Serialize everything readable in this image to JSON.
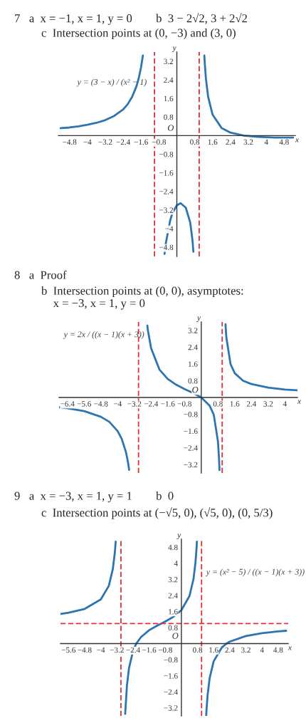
{
  "chart_data": [
    {
      "type": "line",
      "title": "7   a  x = −1, x = 1, y = 0        b  3 − 2√2, 3 + 2√2",
      "subtitle": "c  Intersection points at (0, −3) and (3, 0)",
      "xlabel": "x",
      "ylabel": "y",
      "annotations": [
        "y = (3 − x) / (x² − 1)",
        "O"
      ],
      "series": [
        {
          "color": "#2e75b0",
          "x": [
            -5.2,
            -4.8,
            -4.4,
            -4,
            -3.6,
            -3.2,
            -2.8,
            -2.4,
            -2.2,
            -2,
            -1.8,
            -1.7,
            -1.6,
            -1.52
          ],
          "values": [
            0.32,
            0.35,
            0.4,
            0.47,
            0.55,
            0.67,
            0.85,
            1.13,
            1.35,
            1.67,
            2.14,
            2.49,
            2.95,
            3.45
          ]
        },
        {
          "color": "#2e75b0",
          "x": [
            -0.55,
            -0.5,
            -0.3,
            -0.2,
            0,
            0.17,
            0.4,
            0.6,
            0.7,
            0.74
          ],
          "values": [
            -5.09,
            -4.67,
            -3.66,
            -3.33,
            -3,
            -2.91,
            -3.1,
            -3.75,
            -4.51,
            -5.0
          ]
        },
        {
          "color": "#2e75b0",
          "x": [
            1.23,
            1.25,
            1.3,
            1.4,
            1.6,
            2,
            2.4,
            3,
            3.6,
            4.4,
            5.2
          ],
          "values": [
            3.45,
            3.11,
            2.46,
            1.67,
            0.9,
            0.33,
            0.13,
            0,
            -0.05,
            -0.08,
            -0.08
          ]
        }
      ],
      "ref_lines": [
        {
          "axis": "x",
          "value": -1,
          "color": "#e0303a",
          "line_style": "dashed"
        },
        {
          "axis": "x",
          "value": 1,
          "color": "#e0303a",
          "line_style": "dashed"
        }
      ],
      "xlim": [
        -5.3,
        5.3
      ],
      "ylim": [
        -5.2,
        3.6
      ],
      "xticks": [
        -4.8,
        -4,
        -3.2,
        -2.4,
        -1.6,
        -0.8,
        0.8,
        1.6,
        2.4,
        3.2,
        4,
        4.8
      ],
      "yticks": [
        -4.8,
        -4,
        -3.2,
        -2.4,
        -1.6,
        -0.8,
        0.8,
        1.6,
        2.4,
        3.2
      ]
    },
    {
      "type": "line",
      "title": "8   a  Proof",
      "subtitle": "b  Intersection points at (0, 0), asymptotes:\n    x = −3, x = 1, y = 0",
      "xlabel": "x",
      "ylabel": "y",
      "annotations": [
        "y = 2x / ((x − 1)(x + 3))",
        "O"
      ],
      "series": [
        {
          "color": "#2e75b0",
          "x": [
            -6.8,
            -6.4,
            -5.6,
            -4.8,
            -4.4,
            -4,
            -3.8,
            -3.6,
            -3.5,
            -3.45
          ],
          "values": [
            -0.46,
            -0.51,
            -0.65,
            -0.92,
            -1.16,
            -1.6,
            -1.98,
            -2.61,
            -3.11,
            -3.45
          ]
        },
        {
          "color": "#2e75b0",
          "x": [
            -2.58,
            -2.55,
            -2.4,
            -2,
            -1.6,
            -1.2,
            -0.8,
            -0.4,
            0,
            0.4,
            0.6,
            0.8,
            0.85,
            0.87
          ],
          "values": [
            3.43,
            3.19,
            2.35,
            1.33,
            0.88,
            0.61,
            0.4,
            0.22,
            0,
            -0.39,
            -0.83,
            -2.11,
            -2.94,
            -3.46
          ]
        },
        {
          "color": "#2e75b0",
          "x": [
            1.16,
            1.17,
            1.2,
            1.4,
            1.6,
            2,
            2.4,
            3.2,
            4,
            4.6
          ],
          "values": [
            3.49,
            3.3,
            2.86,
            1.59,
            1.16,
            0.8,
            0.64,
            0.47,
            0.38,
            0.34
          ]
        }
      ],
      "ref_lines": [
        {
          "axis": "x",
          "value": -3,
          "color": "#e0303a",
          "line_style": "dashed"
        },
        {
          "axis": "x",
          "value": 1,
          "color": "#e0303a",
          "line_style": "dashed"
        }
      ],
      "xlim": [
        -6.8,
        4.6
      ],
      "ylim": [
        -3.6,
        3.6
      ],
      "xticks": [
        -6.4,
        -5.6,
        -4.8,
        -4,
        -3.2,
        -2.4,
        -1.6,
        -0.8,
        0.8,
        1.6,
        2.4,
        3.2,
        4
      ],
      "yticks": [
        -3.2,
        -2.4,
        -1.6,
        -0.8,
        0.8,
        1.6,
        2.4,
        3.2
      ]
    },
    {
      "type": "line",
      "title": "9   a  x = −3, x = 1, y = 1        b  0",
      "subtitle": "c  Intersection points at (−√5, 0), (√5, 0), (0, 5/3)",
      "xlabel": "x",
      "ylabel": "y",
      "annotations": [
        "y = (x² − 5) / ((x − 1)(x + 3))",
        "O"
      ],
      "series": [
        {
          "color": "#2e75b0",
          "x": [
            -6,
            -5.6,
            -4.8,
            -4,
            -3.6,
            -3.4,
            -3.3,
            -3.26
          ],
          "values": [
            1.48,
            1.54,
            1.73,
            2.2,
            2.88,
            3.73,
            4.57,
            5.08
          ]
        },
        {
          "color": "#2e75b0",
          "x": [
            -2.79,
            -2.7,
            -2.6,
            -2.4,
            -2.24,
            -2,
            -1.6,
            -1.2,
            -0.8,
            -0.4,
            0,
            0.4,
            0.6,
            0.7,
            0.75,
            0.77
          ],
          "values": [
            -3.5,
            -2.06,
            -1.22,
            -0.37,
            0,
            0.33,
            0.67,
            0.9,
            1.1,
            1.33,
            1.67,
            2.37,
            3.22,
            4.06,
            4.73,
            5.08
          ]
        },
        {
          "color": "#2e75b0",
          "x": [
            1.23,
            1.25,
            1.3,
            1.4,
            1.6,
            2,
            2.24,
            2.4,
            3.2,
            4,
            4.8,
            5.2
          ],
          "values": [
            -3.58,
            -3.24,
            -2.57,
            -1.73,
            -0.88,
            -0.2,
            0,
            0.1,
            0.38,
            0.52,
            0.61,
            0.64
          ]
        }
      ],
      "ref_lines": [
        {
          "axis": "x",
          "value": -3,
          "color": "#e0303a",
          "line_style": "dashed"
        },
        {
          "axis": "x",
          "value": 1,
          "color": "#e0303a",
          "line_style": "dashed"
        },
        {
          "axis": "y",
          "value": 1,
          "color": "#e0303a",
          "line_style": "dashed"
        }
      ],
      "xlim": [
        -6.0,
        5.3
      ],
      "ylim": [
        -3.6,
        5.2
      ],
      "xticks": [
        -5.6,
        -4.8,
        -4,
        -3.2,
        -2.4,
        -1.6,
        -0.8,
        0.8,
        1.6,
        2.4,
        3.2,
        4,
        4.8
      ],
      "yticks": [
        -3.2,
        -2.4,
        -1.6,
        -0.8,
        0.8,
        1.6,
        2.4,
        3.2,
        4,
        4.8
      ]
    }
  ]
}
